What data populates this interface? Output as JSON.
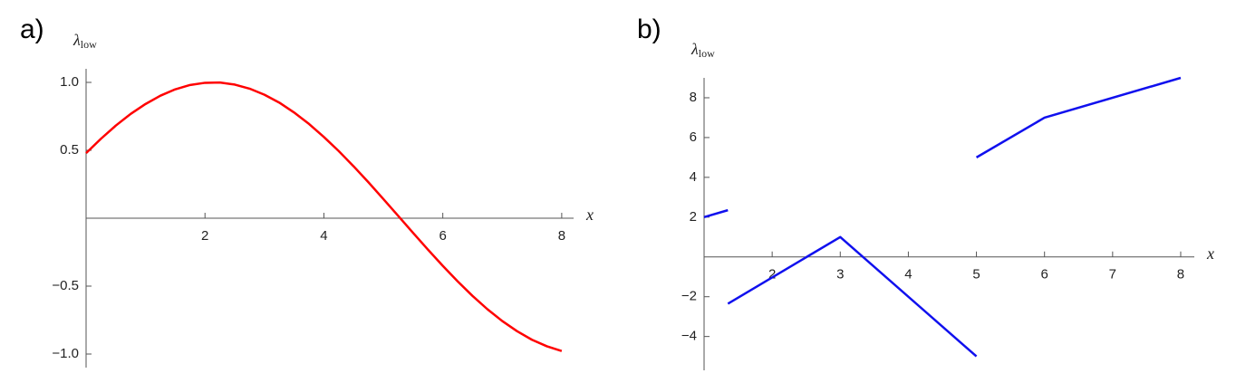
{
  "chart_data": [
    {
      "type": "line",
      "panel_label": "a)",
      "ylabel": {
        "symbol": "λ",
        "subscript": "low"
      },
      "xlabel": "x",
      "xlim": [
        0,
        8.2
      ],
      "ylim": [
        -1.1,
        1.1
      ],
      "xticks": [
        2,
        4,
        6,
        8
      ],
      "yticks": [
        {
          "value": -1.0,
          "label": "−1.0"
        },
        {
          "value": -0.5,
          "label": "−0.5"
        },
        0.5,
        {
          "value": 1.0,
          "label": "1.0"
        }
      ],
      "series": [
        {
          "color": "#ff0000",
          "x": [
            0,
            0.25,
            0.5,
            0.75,
            1,
            1.25,
            1.5,
            1.75,
            2,
            2.25,
            2.5,
            2.75,
            3,
            3.25,
            3.5,
            3.75,
            4,
            4.25,
            4.5,
            4.75,
            5,
            5.25,
            5.5,
            5.75,
            6,
            6.25,
            6.5,
            6.75,
            7,
            7.25,
            7.5,
            7.75,
            8
          ],
          "values": [
            0.479,
            0.585,
            0.682,
            0.768,
            0.841,
            0.902,
            0.949,
            0.981,
            0.997,
            0.999,
            0.984,
            0.954,
            0.909,
            0.851,
            0.778,
            0.694,
            0.598,
            0.494,
            0.382,
            0.264,
            0.141,
            0.017,
            -0.108,
            -0.231,
            -0.351,
            -0.465,
            -0.572,
            -0.67,
            -0.757,
            -0.832,
            -0.895,
            -0.943,
            -0.978
          ]
        }
      ]
    },
    {
      "type": "line",
      "panel_label": "b)",
      "ylabel": {
        "symbol": "λ",
        "subscript": "low"
      },
      "xlabel": "x",
      "xlim": [
        1,
        8.2
      ],
      "ylim": [
        -5.7,
        9
      ],
      "xticks": [
        2,
        3,
        4,
        5,
        6,
        7,
        8
      ],
      "yticks": [
        {
          "value": -4,
          "label": "−4"
        },
        {
          "value": -2,
          "label": "−2"
        },
        2,
        4,
        6,
        8
      ],
      "series": [
        {
          "color": "#1010ee",
          "x": [
            1,
            1.35,
            null,
            1.35,
            3,
            5,
            null,
            5,
            6,
            8
          ],
          "values": [
            2,
            2.35,
            null,
            -2.35,
            1,
            -5,
            null,
            5,
            7,
            9
          ]
        }
      ]
    }
  ]
}
